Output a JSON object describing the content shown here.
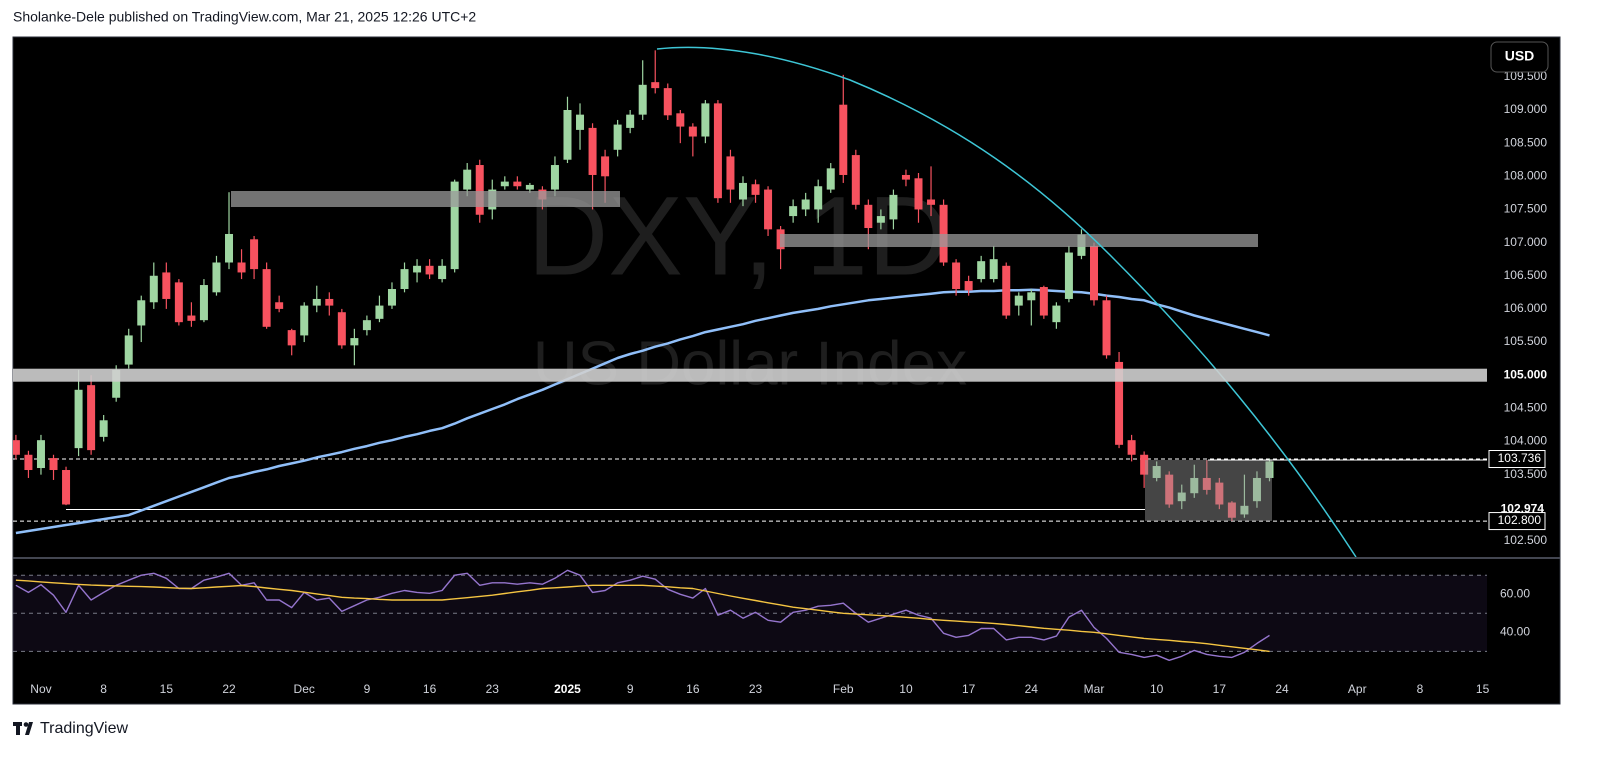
{
  "header": {
    "attribution": "Sholanke-Dele published on TradingView.com, Mar 21, 2025 12:26 UTC+2"
  },
  "watermark": {
    "symbol": "DXY, 1D",
    "name": "US Dollar Index"
  },
  "currency_button": "USD",
  "footer": {
    "brand": "TradingView"
  },
  "chart_data": [
    {
      "type": "candlestick",
      "categories": [
        null,
        null,
        "Nov",
        null,
        null,
        null,
        null,
        "8",
        null,
        null,
        null,
        null,
        "15",
        null,
        null,
        null,
        null,
        "22",
        null,
        null,
        null,
        null,
        null,
        "Dec",
        null,
        null,
        null,
        null,
        "9",
        null,
        null,
        null,
        null,
        "16",
        null,
        null,
        null,
        null,
        "23",
        null,
        null,
        null,
        null,
        null,
        "2025",
        null,
        null,
        null,
        null,
        "9",
        null,
        null,
        null,
        null,
        "16",
        null,
        null,
        null,
        null,
        "23",
        null,
        null,
        null,
        null,
        null,
        null,
        "Feb",
        null,
        null,
        null,
        null,
        "10",
        null,
        null,
        null,
        null,
        "17",
        null,
        null,
        null,
        null,
        "24",
        null,
        null,
        null,
        null,
        "Mar",
        null,
        null,
        null,
        null,
        "10",
        null,
        null,
        null,
        null,
        "17",
        null,
        null,
        null,
        null,
        "24",
        null,
        null,
        null,
        null,
        null,
        "Apr",
        null,
        null,
        null,
        null,
        "8",
        null,
        null,
        null,
        null,
        "15"
      ],
      "open": [
        104.02,
        103.8,
        103.6,
        103.75,
        103.57,
        103.9,
        104.85,
        104.07,
        104.66,
        105.16,
        105.75,
        106.1,
        106.55,
        106.4,
        105.9,
        105.83,
        106.25,
        106.7,
        106.7,
        107.05,
        106.6,
        106.1,
        105.68,
        105.6,
        106.05,
        106.15,
        105.95,
        105.45,
        105.68,
        105.85,
        106.05,
        106.3,
        106.55,
        106.65,
        106.45,
        106.6,
        107.8,
        108.17,
        107.5,
        107.85,
        107.92,
        107.8,
        107.8,
        107.8,
        108.25,
        108.7,
        108.73,
        108.3,
        108.4,
        108.73,
        108.93,
        109.42,
        109.33,
        108.95,
        108.75,
        108.6,
        109.1,
        108.3,
        107.65,
        107.88,
        107.8,
        107.2,
        107.4,
        107.5,
        107.5,
        107.8,
        109.08,
        108.32,
        107.57,
        107.3,
        107.35,
        108.02,
        107.97,
        107.65,
        107.57,
        106.7,
        106.42,
        106.45,
        106.45,
        106.65,
        106.05,
        106.13,
        106.33,
        105.8,
        106.15,
        106.8,
        106.95,
        106.13,
        105.2,
        104.02,
        103.8,
        103.45,
        103.5,
        103.1,
        103.22,
        103.45,
        103.38,
        103.08,
        102.9,
        103.1,
        103.45,
        null,
        null,
        null,
        null,
        null,
        null,
        null,
        null,
        null,
        null,
        null,
        null,
        null,
        null,
        null,
        null,
        null
      ],
      "high": [
        104.1,
        103.86,
        104.1,
        103.8,
        103.62,
        105.08,
        105.0,
        104.4,
        105.15,
        105.7,
        106.2,
        106.7,
        106.7,
        106.45,
        106.1,
        106.45,
        106.8,
        107.76,
        106.9,
        107.1,
        106.7,
        106.2,
        105.7,
        106.1,
        106.35,
        106.25,
        106.0,
        105.7,
        105.9,
        106.2,
        106.4,
        106.7,
        106.75,
        106.75,
        106.75,
        107.95,
        108.2,
        108.25,
        107.95,
        108.0,
        108.0,
        107.9,
        107.85,
        108.3,
        109.2,
        109.1,
        108.8,
        108.4,
        108.85,
        109.0,
        109.75,
        109.9,
        109.4,
        109.0,
        108.8,
        109.15,
        109.15,
        108.4,
        108.0,
        107.95,
        107.85,
        107.25,
        107.65,
        107.75,
        107.95,
        108.2,
        109.53,
        108.4,
        107.65,
        107.5,
        107.8,
        108.1,
        108.05,
        108.15,
        107.65,
        106.75,
        106.5,
        106.8,
        106.95,
        106.7,
        106.25,
        106.3,
        106.35,
        106.1,
        106.95,
        107.2,
        107.0,
        106.2,
        105.35,
        104.1,
        103.85,
        103.7,
        103.55,
        103.35,
        103.65,
        103.72,
        103.45,
        103.1,
        103.5,
        103.55,
        103.74,
        null,
        null,
        null,
        null,
        null,
        null,
        null,
        null,
        null,
        null,
        null,
        null,
        null,
        null,
        null,
        null,
        null
      ],
      "low": [
        103.73,
        103.45,
        103.5,
        103.42,
        103.04,
        103.78,
        103.8,
        104.0,
        104.6,
        105.1,
        105.5,
        106.0,
        106.0,
        105.75,
        105.73,
        105.8,
        106.2,
        106.6,
        106.45,
        106.45,
        105.7,
        105.95,
        105.3,
        105.5,
        105.95,
        105.9,
        105.4,
        105.15,
        105.6,
        105.8,
        106.0,
        106.25,
        106.4,
        106.45,
        106.4,
        106.55,
        107.7,
        107.3,
        107.35,
        107.8,
        107.8,
        107.75,
        107.5,
        107.7,
        108.2,
        108.4,
        107.5,
        107.6,
        108.3,
        108.65,
        108.85,
        109.25,
        108.85,
        108.5,
        108.3,
        108.5,
        107.6,
        107.6,
        107.55,
        107.6,
        107.1,
        106.6,
        107.3,
        107.4,
        107.3,
        107.75,
        107.9,
        107.5,
        106.9,
        107.2,
        107.2,
        107.85,
        107.3,
        107.4,
        106.65,
        106.2,
        106.2,
        106.4,
        106.4,
        105.85,
        105.9,
        105.75,
        105.85,
        105.7,
        106.1,
        106.75,
        106.05,
        105.25,
        103.9,
        103.7,
        103.3,
        103.4,
        103.0,
        102.98,
        103.15,
        103.2,
        102.98,
        102.8,
        102.85,
        103.0,
        103.4,
        null,
        null,
        null,
        null,
        null,
        null,
        null,
        null,
        null,
        null,
        null,
        null,
        null,
        null,
        null,
        null,
        null
      ],
      "close": [
        103.8,
        103.57,
        104.02,
        103.57,
        103.05,
        104.78,
        103.87,
        104.32,
        105.08,
        105.6,
        106.13,
        106.5,
        106.15,
        105.8,
        105.82,
        106.36,
        106.7,
        107.13,
        106.55,
        106.6,
        105.73,
        106.0,
        105.45,
        106.05,
        106.15,
        106.05,
        105.45,
        105.56,
        105.83,
        106.05,
        106.3,
        106.6,
        106.65,
        106.52,
        106.65,
        107.92,
        108.1,
        107.42,
        107.8,
        107.92,
        107.85,
        107.87,
        107.65,
        108.17,
        109.0,
        108.93,
        108.02,
        108.0,
        108.78,
        108.93,
        109.38,
        109.33,
        108.92,
        108.75,
        108.6,
        109.1,
        107.67,
        107.8,
        107.9,
        107.72,
        107.2,
        106.9,
        107.55,
        107.65,
        107.85,
        108.12,
        108.02,
        107.57,
        107.22,
        107.4,
        107.72,
        107.95,
        107.5,
        107.57,
        106.7,
        106.3,
        106.28,
        106.72,
        106.75,
        105.9,
        106.2,
        106.25,
        105.9,
        106.05,
        106.85,
        107.12,
        106.13,
        105.3,
        103.95,
        103.8,
        103.5,
        103.63,
        103.05,
        103.23,
        103.45,
        103.27,
        103.05,
        102.85,
        103.03,
        103.45,
        103.7,
        null,
        null,
        null,
        null,
        null,
        null,
        null,
        null,
        null,
        null,
        null,
        null,
        null,
        null,
        null,
        null,
        null
      ],
      "up_color": "#9fd6a2",
      "down_color": "#f7525f",
      "series": [
        {
          "color": "#90bff9",
          "values": [
            102.62,
            102.65,
            102.68,
            102.71,
            102.74,
            102.77,
            102.8,
            102.83,
            102.86,
            102.89,
            102.96,
            103.03,
            103.1,
            103.17,
            103.24,
            103.31,
            103.38,
            103.45,
            103.49,
            103.54,
            103.58,
            103.63,
            103.67,
            103.71,
            103.76,
            103.8,
            103.84,
            103.89,
            103.93,
            103.98,
            104.02,
            104.07,
            104.11,
            104.16,
            104.2,
            104.27,
            104.35,
            104.42,
            104.49,
            104.56,
            104.64,
            104.71,
            104.78,
            104.86,
            104.94,
            105.02,
            105.1,
            105.18,
            105.26,
            105.32,
            105.37,
            105.43,
            105.48,
            105.54,
            105.59,
            105.65,
            105.69,
            105.73,
            105.77,
            105.82,
            105.86,
            105.9,
            105.94,
            105.97,
            106.0,
            106.04,
            106.07,
            106.1,
            106.13,
            106.15,
            106.17,
            106.19,
            106.21,
            106.23,
            106.25,
            106.26,
            106.26,
            106.27,
            106.27,
            106.28,
            106.28,
            106.29,
            106.28,
            106.27,
            106.26,
            106.25,
            106.23,
            106.2,
            106.18,
            106.15,
            106.13,
            106.07,
            106.02,
            105.96,
            105.9,
            105.85,
            105.8,
            105.75,
            105.7,
            105.65,
            105.6,
            null,
            null,
            null,
            null,
            null,
            null,
            null,
            null,
            null,
            null,
            null,
            null,
            null,
            null,
            null,
            null,
            null
          ]
        }
      ],
      "ylim": [
        102.258,
        110.086
      ],
      "yticks": [
        {
          "value": 102.5,
          "label": "102.500"
        },
        {
          "value": 103.5,
          "label": "103.500"
        },
        {
          "value": 104,
          "label": "104.000"
        },
        {
          "value": 104.5,
          "label": "104.500"
        },
        {
          "value": 105.5,
          "label": "105.500"
        },
        {
          "value": 106,
          "label": "106.000"
        },
        {
          "value": 106.5,
          "label": "106.500"
        },
        {
          "value": 107,
          "label": "107.000"
        },
        {
          "value": 107.5,
          "label": "107.500"
        },
        {
          "value": 108,
          "label": "108.000"
        },
        {
          "value": 108.5,
          "label": "108.500"
        },
        {
          "value": 109,
          "label": "109.000"
        },
        {
          "value": 109.5,
          "label": "109.500"
        }
      ],
      "price_lines": [
        {
          "value": 105,
          "label": "105.000",
          "style": "zone"
        },
        {
          "value": 102.974,
          "label": "102.974",
          "style": "solid"
        },
        {
          "value": 103.736,
          "label": "103.736",
          "style": "dashed"
        },
        {
          "value": 102.8,
          "label": "102.800",
          "style": "dashed"
        }
      ]
    },
    {
      "type": "line",
      "ylim": [
        16,
        78
      ],
      "yticks": [
        {
          "value": 60,
          "label": "60.00"
        },
        {
          "value": 40,
          "label": "40.00"
        }
      ],
      "levels": [
        30,
        50,
        70
      ],
      "series": [
        {
          "color": "#9575cd",
          "values": [
            64.7,
            61,
            65,
            59.5,
            50.5,
            64.7,
            57,
            61,
            64.7,
            67.4,
            70,
            71,
            68.4,
            63,
            63,
            67.4,
            69,
            71,
            64.7,
            66,
            57,
            57,
            53,
            61,
            57,
            58,
            51,
            54,
            57,
            58.4,
            60.5,
            62,
            61,
            60.5,
            62,
            70,
            71,
            64.7,
            66,
            66,
            65.3,
            66,
            65.3,
            68.4,
            72.6,
            70,
            61,
            62,
            66,
            67.4,
            69.5,
            67.9,
            62.6,
            60,
            58,
            63,
            49,
            51.6,
            47.4,
            50.5,
            46.3,
            45.3,
            50.5,
            51.6,
            53.7,
            54.2,
            55.3,
            50,
            45.3,
            47.4,
            49.5,
            51.6,
            49,
            47.4,
            39.5,
            37.4,
            38.4,
            42,
            42,
            36,
            37.4,
            37.4,
            36,
            38,
            48,
            51.6,
            42.6,
            36.8,
            29.5,
            28.4,
            26.8,
            28,
            25.3,
            27.4,
            30.5,
            28.4,
            27.4,
            26.8,
            29.5,
            34.2,
            38.4,
            null,
            null,
            null,
            null,
            null,
            null,
            null,
            null,
            null,
            null,
            null,
            null,
            null,
            null,
            null,
            null,
            null
          ]
        },
        {
          "color": "#f5c542",
          "values": [
            67.4,
            67,
            66.5,
            66,
            65.6,
            65.2,
            64.8,
            64.6,
            64.4,
            64.2,
            64,
            63.8,
            63.5,
            63.2,
            63,
            63.4,
            63.8,
            64.2,
            64.6,
            64,
            63.3,
            62.6,
            62,
            61.1,
            60.2,
            59.3,
            58.4,
            58,
            57.7,
            57.3,
            57,
            57,
            57,
            57,
            57,
            57.6,
            58.2,
            58.9,
            59.5,
            60.4,
            61.3,
            62.1,
            63,
            63.4,
            63.8,
            64.3,
            64.7,
            64.7,
            64.7,
            64.7,
            64.7,
            64.3,
            63.9,
            63.4,
            63,
            61.7,
            60.4,
            59.1,
            57.9,
            56.7,
            55.5,
            54.4,
            53.2,
            52.4,
            51.6,
            50.8,
            50,
            49.6,
            49.2,
            48.8,
            48.4,
            47.9,
            47.4,
            46.8,
            46.3,
            45.9,
            45.5,
            45.1,
            44.7,
            44.1,
            43.5,
            42.8,
            42.1,
            41.6,
            41.1,
            40.5,
            40,
            39.2,
            38.4,
            37.6,
            36.8,
            36.3,
            35.8,
            35.2,
            34.7,
            34,
            33.2,
            32.4,
            31.6,
            30.8,
            30,
            null,
            null,
            null,
            null,
            null,
            null,
            null,
            null,
            null,
            null,
            null,
            null,
            null,
            null,
            null,
            null,
            null
          ]
        }
      ]
    }
  ]
}
